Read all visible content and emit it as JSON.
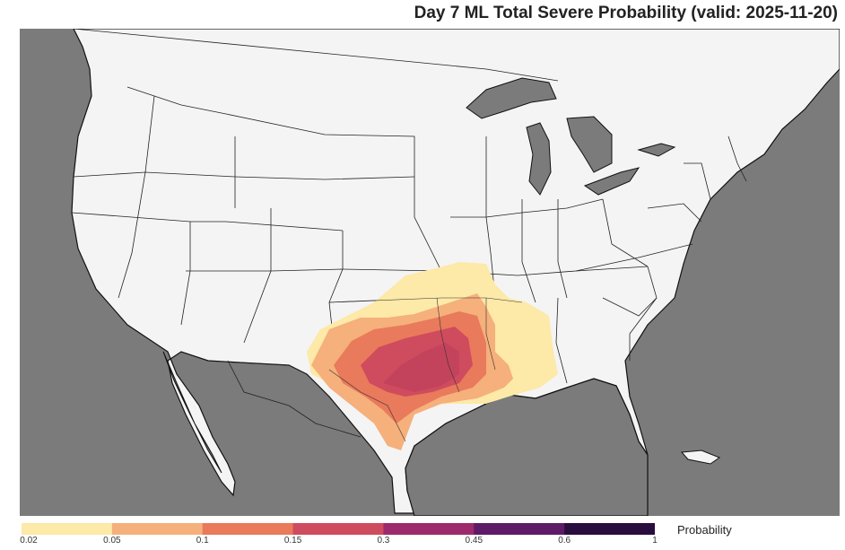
{
  "title": "Day 7 ML Total Severe Probability (valid: 2025-11-20)",
  "colors": {
    "ocean": "#7b7b7b",
    "land": "#f4f4f4",
    "border": "#111111",
    "levels": [
      "#fde9a8",
      "#f5b07c",
      "#e97a5b",
      "#cf4b5e",
      "#9c2a6c",
      "#5e1a67",
      "#2a0d3f"
    ]
  },
  "colorbar": {
    "label": "Probability",
    "ticks": [
      "0.02",
      "0.05",
      "0.1",
      "0.15",
      "0.3",
      "0.45",
      "0.6",
      "1"
    ]
  }
}
